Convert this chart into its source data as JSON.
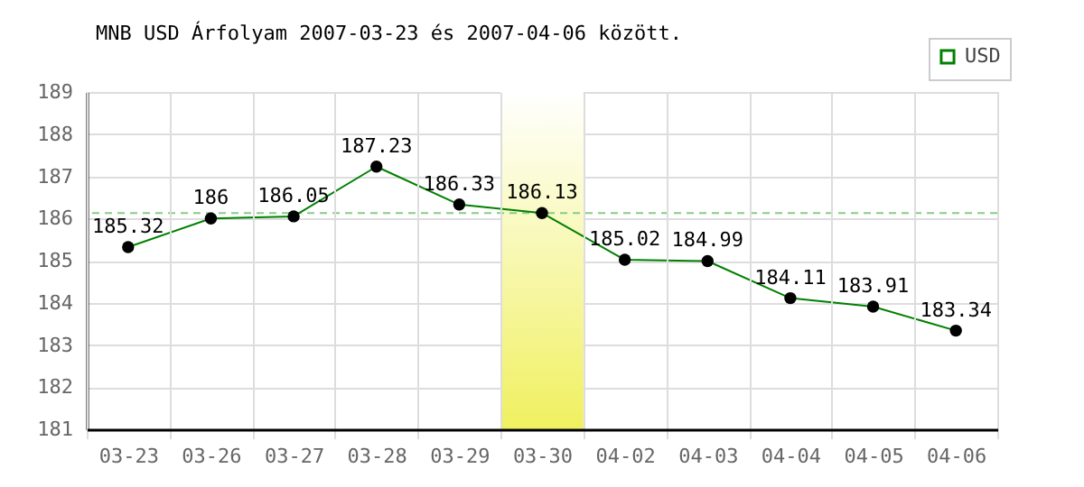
{
  "chart_data": {
    "type": "line",
    "title": "MNB USD Árfolyam 2007-03-23 és 2007-04-06 között.",
    "categories": [
      "03-23",
      "03-26",
      "03-27",
      "03-28",
      "03-29",
      "03-30",
      "04-02",
      "04-03",
      "04-04",
      "04-05",
      "04-06"
    ],
    "series": [
      {
        "name": "USD",
        "color": "#008000",
        "values": [
          185.32,
          186,
          186.05,
          187.23,
          186.33,
          186.13,
          185.02,
          184.99,
          184.11,
          183.91,
          183.34
        ]
      }
    ],
    "ylim": [
      181,
      189
    ],
    "yticks": [
      181,
      182,
      183,
      184,
      185,
      186,
      187,
      188,
      189
    ],
    "grid": true,
    "legend": "top right",
    "marker": "circle",
    "line_style": "solid",
    "data_labels": true,
    "ref_lines": [
      {
        "axis": "y",
        "value": 186.13,
        "color": "#88cc88",
        "line_style": "dashed"
      }
    ],
    "bands": [
      {
        "axis": "x",
        "from": "03-30",
        "to": "03-30",
        "color": "#f0f060"
      }
    ]
  }
}
